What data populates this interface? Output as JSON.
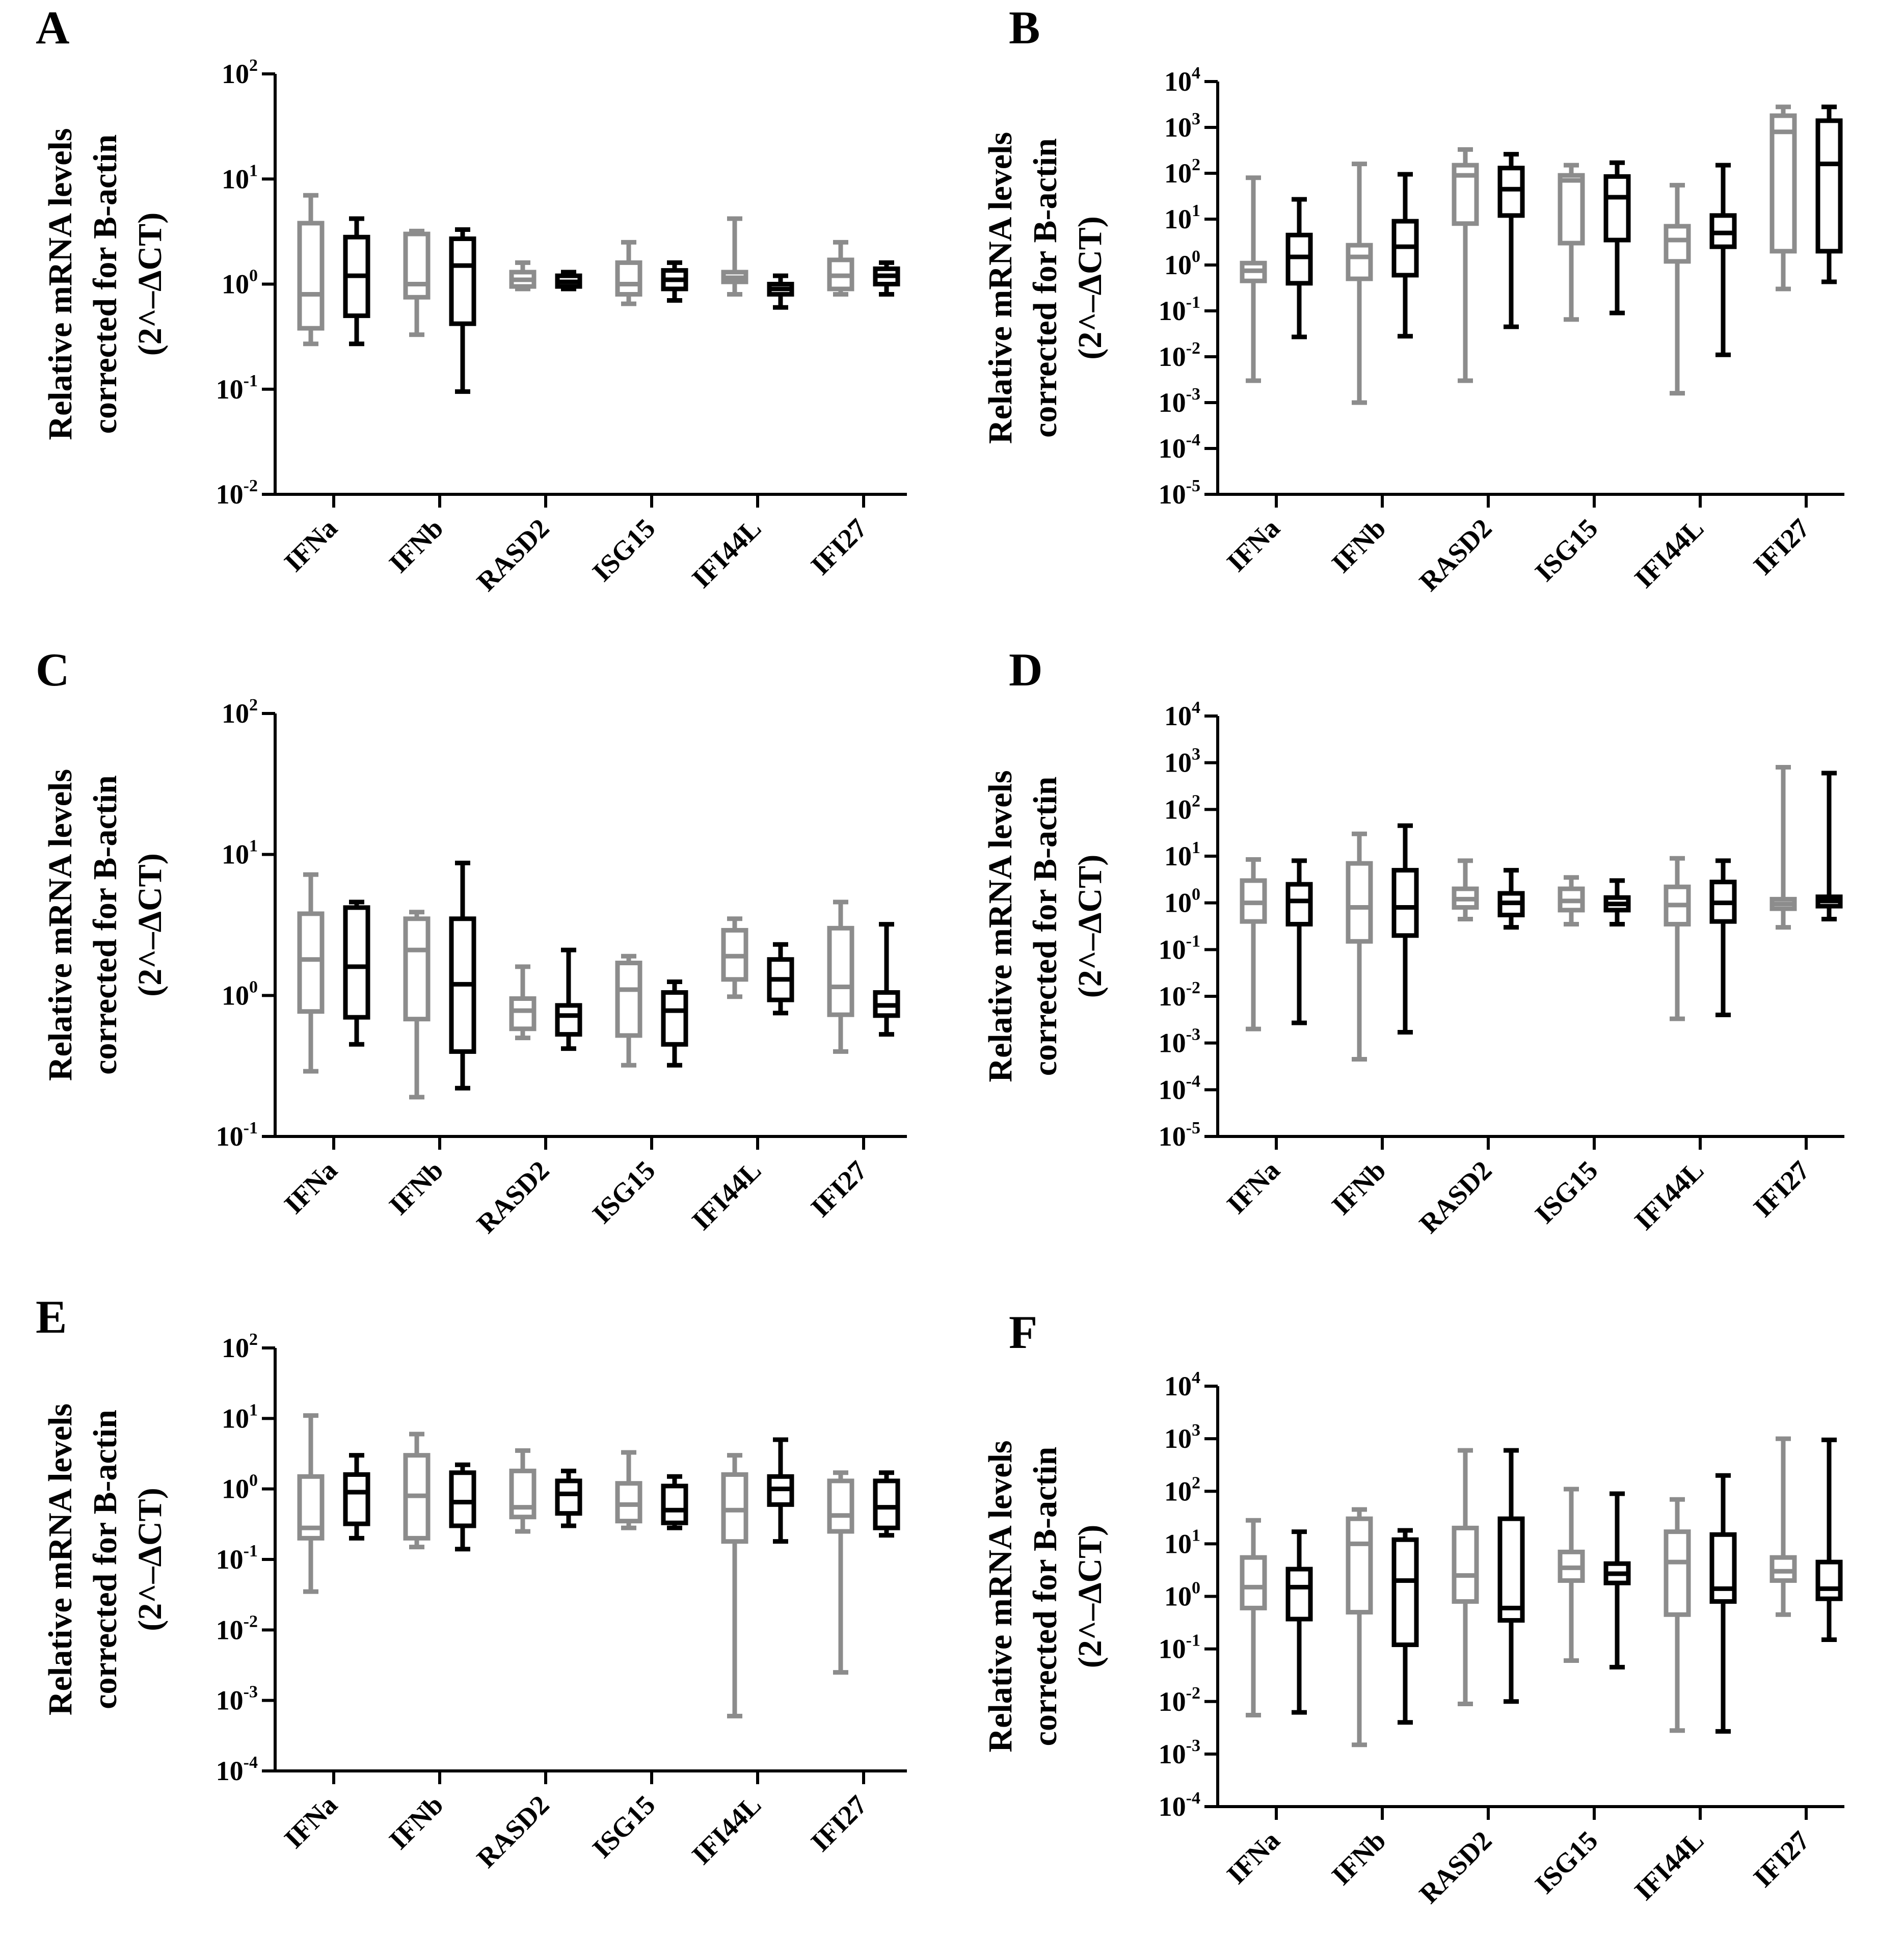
{
  "figure": {
    "categories": [
      "IFNa",
      "IFNb",
      "RASD2",
      "ISG15",
      "IFI44L",
      "IFI27"
    ],
    "series_colors": {
      "series1": "#8c8c8c",
      "series2": "#000000"
    },
    "ylabel_lines": [
      "Relative mRNA levels",
      "corrected for B-actin",
      "(2^–ΔCT)"
    ]
  },
  "chart_data": [
    {
      "panel": "A",
      "type": "box",
      "yscale": "log",
      "ylim_exp": [
        -2,
        2
      ],
      "series": [
        {
          "name": "series1",
          "color": "#8c8c8c",
          "boxes": [
            {
              "min": 0.27,
              "q1": 0.38,
              "median": 0.8,
              "q3": 3.8,
              "max": 7.0
            },
            {
              "min": 0.33,
              "q1": 0.75,
              "median": 1.0,
              "q3": 3.0,
              "max": 3.2
            },
            {
              "min": 0.9,
              "q1": 0.95,
              "median": 1.1,
              "q3": 1.3,
              "max": 1.6
            },
            {
              "min": 0.65,
              "q1": 0.8,
              "median": 1.0,
              "q3": 1.6,
              "max": 2.5
            },
            {
              "min": 0.8,
              "q1": 1.05,
              "median": 1.15,
              "q3": 1.3,
              "max": 4.2
            },
            {
              "min": 0.8,
              "q1": 0.9,
              "median": 1.2,
              "q3": 1.7,
              "max": 2.5
            }
          ]
        },
        {
          "name": "series2",
          "color": "#000000",
          "boxes": [
            {
              "min": 0.27,
              "q1": 0.5,
              "median": 1.2,
              "q3": 2.8,
              "max": 4.2
            },
            {
              "min": 0.095,
              "q1": 0.42,
              "median": 1.5,
              "q3": 2.7,
              "max": 3.3
            },
            {
              "min": 0.9,
              "q1": 0.95,
              "median": 1.05,
              "q3": 1.2,
              "max": 1.3
            },
            {
              "min": 0.7,
              "q1": 0.9,
              "median": 1.1,
              "q3": 1.35,
              "max": 1.6
            },
            {
              "min": 0.6,
              "q1": 0.8,
              "median": 0.9,
              "q3": 1.0,
              "max": 1.2
            },
            {
              "min": 0.8,
              "q1": 1.0,
              "median": 1.2,
              "q3": 1.4,
              "max": 1.6
            }
          ]
        }
      ]
    },
    {
      "panel": "B",
      "type": "box",
      "yscale": "log",
      "ylim_exp": [
        -5,
        4
      ],
      "series": [
        {
          "name": "series1",
          "color": "#8c8c8c",
          "boxes": [
            {
              "min": 0.003,
              "q1": 0.45,
              "median": 0.75,
              "q3": 1.1,
              "max": 80
            },
            {
              "min": 0.001,
              "q1": 0.5,
              "median": 1.5,
              "q3": 2.7,
              "max": 160
            },
            {
              "min": 0.003,
              "q1": 8.0,
              "median": 90,
              "q3": 150,
              "max": 330
            },
            {
              "min": 0.065,
              "q1": 3.0,
              "median": 70,
              "q3": 90,
              "max": 150
            },
            {
              "min": 0.0016,
              "q1": 1.2,
              "median": 3.5,
              "q3": 7.0,
              "max": 55
            },
            {
              "min": 0.3,
              "q1": 2.0,
              "median": 800,
              "q3": 1800,
              "max": 2800
            }
          ]
        },
        {
          "name": "series2",
          "color": "#000000",
          "boxes": [
            {
              "min": 0.027,
              "q1": 0.4,
              "median": 1.5,
              "q3": 4.5,
              "max": 27
            },
            {
              "min": 0.028,
              "q1": 0.6,
              "median": 2.5,
              "q3": 9.0,
              "max": 95
            },
            {
              "min": 0.045,
              "q1": 12,
              "median": 45,
              "q3": 130,
              "max": 260
            },
            {
              "min": 0.09,
              "q1": 3.5,
              "median": 30,
              "q3": 85,
              "max": 170
            },
            {
              "min": 0.011,
              "q1": 2.5,
              "median": 5.0,
              "q3": 12,
              "max": 150
            },
            {
              "min": 0.43,
              "q1": 2.0,
              "median": 160,
              "q3": 1400,
              "max": 2800
            }
          ]
        }
      ]
    },
    {
      "panel": "C",
      "type": "box",
      "yscale": "log",
      "ylim_exp": [
        -1,
        2
      ],
      "series": [
        {
          "name": "series1",
          "color": "#8c8c8c",
          "boxes": [
            {
              "min": 0.29,
              "q1": 0.77,
              "median": 1.8,
              "q3": 3.8,
              "max": 7.2
            },
            {
              "min": 0.19,
              "q1": 0.68,
              "median": 2.1,
              "q3": 3.5,
              "max": 3.9
            },
            {
              "min": 0.5,
              "q1": 0.58,
              "median": 0.78,
              "q3": 0.95,
              "max": 1.6
            },
            {
              "min": 0.32,
              "q1": 0.52,
              "median": 1.1,
              "q3": 1.7,
              "max": 1.9
            },
            {
              "min": 0.98,
              "q1": 1.3,
              "median": 1.9,
              "q3": 2.9,
              "max": 3.5
            },
            {
              "min": 0.4,
              "q1": 0.73,
              "median": 1.15,
              "q3": 3.0,
              "max": 4.6
            }
          ]
        },
        {
          "name": "series2",
          "color": "#000000",
          "boxes": [
            {
              "min": 0.45,
              "q1": 0.7,
              "median": 1.6,
              "q3": 4.2,
              "max": 4.6
            },
            {
              "min": 0.22,
              "q1": 0.4,
              "median": 1.2,
              "q3": 3.5,
              "max": 8.7
            },
            {
              "min": 0.42,
              "q1": 0.53,
              "median": 0.72,
              "q3": 0.85,
              "max": 2.1
            },
            {
              "min": 0.32,
              "q1": 0.45,
              "median": 0.78,
              "q3": 1.05,
              "max": 1.25
            },
            {
              "min": 0.75,
              "q1": 0.93,
              "median": 1.3,
              "q3": 1.8,
              "max": 2.3
            },
            {
              "min": 0.53,
              "q1": 0.72,
              "median": 0.85,
              "q3": 1.05,
              "max": 3.2
            }
          ]
        }
      ]
    },
    {
      "panel": "D",
      "type": "box",
      "yscale": "log",
      "ylim_exp": [
        -5,
        4
      ],
      "series": [
        {
          "name": "series1",
          "color": "#8c8c8c",
          "boxes": [
            {
              "min": 0.002,
              "q1": 0.4,
              "median": 1.0,
              "q3": 3.0,
              "max": 8.5
            },
            {
              "min": 0.00045,
              "q1": 0.15,
              "median": 0.8,
              "q3": 7.0,
              "max": 30
            },
            {
              "min": 0.45,
              "q1": 0.8,
              "median": 1.2,
              "q3": 2.0,
              "max": 8.0
            },
            {
              "min": 0.35,
              "q1": 0.7,
              "median": 1.1,
              "q3": 2.0,
              "max": 3.5
            },
            {
              "min": 0.0033,
              "q1": 0.35,
              "median": 0.9,
              "q3": 2.2,
              "max": 9.0
            },
            {
              "min": 0.3,
              "q1": 0.75,
              "median": 0.95,
              "q3": 1.2,
              "max": 800
            }
          ]
        },
        {
          "name": "series2",
          "color": "#000000",
          "boxes": [
            {
              "min": 0.0027,
              "q1": 0.35,
              "median": 1.1,
              "q3": 2.5,
              "max": 8.0
            },
            {
              "min": 0.0017,
              "q1": 0.2,
              "median": 0.8,
              "q3": 5.0,
              "max": 45
            },
            {
              "min": 0.3,
              "q1": 0.55,
              "median": 1.0,
              "q3": 1.6,
              "max": 5.0
            },
            {
              "min": 0.35,
              "q1": 0.7,
              "median": 0.95,
              "q3": 1.3,
              "max": 3.0
            },
            {
              "min": 0.004,
              "q1": 0.4,
              "median": 1.0,
              "q3": 2.8,
              "max": 8.0
            },
            {
              "min": 0.45,
              "q1": 0.85,
              "median": 1.1,
              "q3": 1.35,
              "max": 600
            }
          ]
        }
      ]
    },
    {
      "panel": "E",
      "type": "box",
      "yscale": "log",
      "ylim_exp": [
        -4,
        2
      ],
      "series": [
        {
          "name": "series1",
          "color": "#8c8c8c",
          "boxes": [
            {
              "min": 0.035,
              "q1": 0.2,
              "median": 0.28,
              "q3": 1.5,
              "max": 11
            },
            {
              "min": 0.15,
              "q1": 0.2,
              "median": 0.8,
              "q3": 3.0,
              "max": 6.0
            },
            {
              "min": 0.25,
              "q1": 0.4,
              "median": 0.55,
              "q3": 1.8,
              "max": 3.5
            },
            {
              "min": 0.28,
              "q1": 0.35,
              "median": 0.6,
              "q3": 1.2,
              "max": 3.3
            },
            {
              "min": 0.0006,
              "q1": 0.18,
              "median": 0.5,
              "q3": 1.6,
              "max": 3.0
            },
            {
              "min": 0.0025,
              "q1": 0.25,
              "median": 0.42,
              "q3": 1.3,
              "max": 1.7
            }
          ]
        },
        {
          "name": "series2",
          "color": "#000000",
          "boxes": [
            {
              "min": 0.2,
              "q1": 0.32,
              "median": 0.9,
              "q3": 1.6,
              "max": 3.0
            },
            {
              "min": 0.14,
              "q1": 0.3,
              "median": 0.65,
              "q3": 1.7,
              "max": 2.2
            },
            {
              "min": 0.3,
              "q1": 0.45,
              "median": 0.85,
              "q3": 1.3,
              "max": 1.8
            },
            {
              "min": 0.28,
              "q1": 0.33,
              "median": 0.5,
              "q3": 1.1,
              "max": 1.5
            },
            {
              "min": 0.18,
              "q1": 0.6,
              "median": 1.0,
              "q3": 1.5,
              "max": 5.0
            },
            {
              "min": 0.22,
              "q1": 0.28,
              "median": 0.55,
              "q3": 1.3,
              "max": 1.7
            }
          ]
        }
      ]
    },
    {
      "panel": "F",
      "type": "box",
      "yscale": "log",
      "ylim_exp": [
        -4,
        4
      ],
      "series": [
        {
          "name": "series1",
          "color": "#8c8c8c",
          "boxes": [
            {
              "min": 0.0055,
              "q1": 0.6,
              "median": 1.5,
              "q3": 5.5,
              "max": 28
            },
            {
              "min": 0.0015,
              "q1": 0.5,
              "median": 10,
              "q3": 30,
              "max": 45
            },
            {
              "min": 0.009,
              "q1": 0.8,
              "median": 2.5,
              "q3": 20,
              "max": 600
            },
            {
              "min": 0.06,
              "q1": 2.0,
              "median": 3.5,
              "q3": 7.0,
              "max": 110
            },
            {
              "min": 0.0028,
              "q1": 0.45,
              "median": 4.5,
              "q3": 17,
              "max": 70
            },
            {
              "min": 0.45,
              "q1": 2.0,
              "median": 3.0,
              "q3": 5.5,
              "max": 1000
            }
          ]
        },
        {
          "name": "series2",
          "color": "#000000",
          "boxes": [
            {
              "min": 0.0062,
              "q1": 0.37,
              "median": 1.5,
              "q3": 3.3,
              "max": 17
            },
            {
              "min": 0.004,
              "q1": 0.12,
              "median": 2.0,
              "q3": 12,
              "max": 18
            },
            {
              "min": 0.01,
              "q1": 0.35,
              "median": 0.6,
              "q3": 30,
              "max": 600
            },
            {
              "min": 0.045,
              "q1": 1.8,
              "median": 2.7,
              "q3": 4.2,
              "max": 90
            },
            {
              "min": 0.0027,
              "q1": 0.8,
              "median": 1.4,
              "q3": 15,
              "max": 200
            },
            {
              "min": 0.15,
              "q1": 0.9,
              "median": 1.4,
              "q3": 4.5,
              "max": 950
            }
          ]
        }
      ]
    }
  ]
}
